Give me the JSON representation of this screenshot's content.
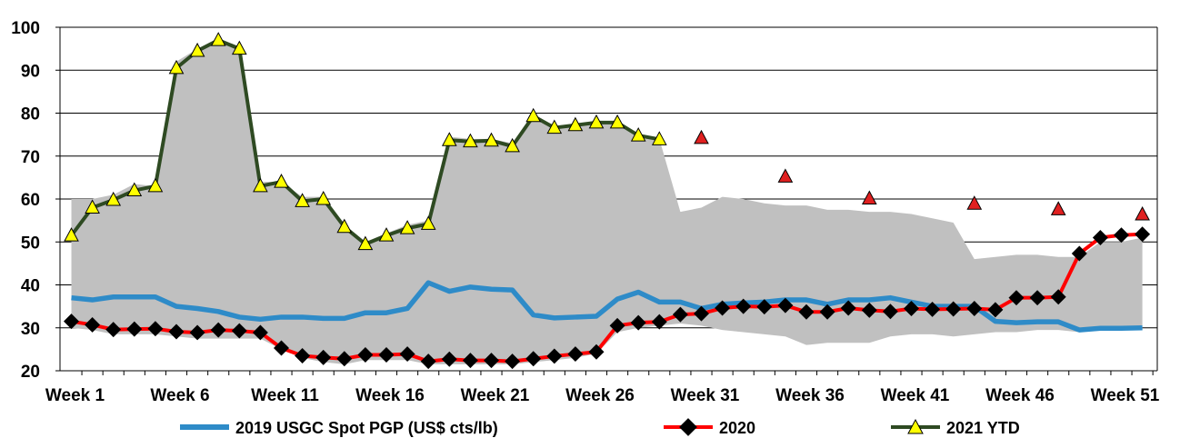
{
  "chart_data": {
    "type": "line",
    "title": "",
    "xlabel": "",
    "ylabel": "",
    "ylim": [
      20,
      100
    ],
    "y_ticks": [
      20,
      30,
      40,
      50,
      60,
      70,
      80,
      90,
      100
    ],
    "x_weeks": [
      1,
      2,
      3,
      4,
      5,
      6,
      7,
      8,
      9,
      10,
      11,
      12,
      13,
      14,
      15,
      16,
      17,
      18,
      19,
      20,
      21,
      22,
      23,
      24,
      25,
      26,
      27,
      28,
      29,
      30,
      31,
      32,
      33,
      34,
      35,
      36,
      37,
      38,
      39,
      40,
      41,
      42,
      43,
      44,
      45,
      46,
      47,
      48,
      49,
      50,
      51,
      52
    ],
    "x_tick_labels": [
      {
        "week": 1,
        "label": "Week 1"
      },
      {
        "week": 6,
        "label": "Week 6"
      },
      {
        "week": 11,
        "label": "Week 11"
      },
      {
        "week": 16,
        "label": "Week 16"
      },
      {
        "week": 21,
        "label": "Week 21"
      },
      {
        "week": 26,
        "label": "Week 26"
      },
      {
        "week": 31,
        "label": "Week 31"
      },
      {
        "week": 36,
        "label": "Week 36"
      },
      {
        "week": 41,
        "label": "Week 41"
      },
      {
        "week": 46,
        "label": "Week 46"
      },
      {
        "week": 51,
        "label": "Week 51"
      }
    ],
    "grid": "horizontal",
    "legend_position": "bottom",
    "colors": {
      "range_band": "#c0c0c0",
      "series_2019": "#2e8bc8",
      "series_2020_line": "#ff0000",
      "series_2020_marker": "#000000",
      "series_2021_line": "#2e4a22",
      "series_2021_marker": "#ffff00",
      "sparse_marker": "#e02020"
    },
    "range_band": {
      "upper": [
        60,
        60,
        61,
        63.5,
        63,
        92,
        95,
        97.5,
        95.5,
        64,
        64,
        60.5,
        60.5,
        54,
        50,
        52,
        54,
        55,
        74.5,
        74,
        74,
        73,
        79.5,
        77,
        77.5,
        78,
        78,
        75,
        74,
        57,
        58,
        60.5,
        60,
        59,
        58.5,
        58.5,
        57.5,
        57.5,
        57,
        57,
        56.5,
        55.5,
        54.5,
        46,
        46.5,
        47,
        47,
        46.5,
        46.5,
        50,
        50,
        51
      ],
      "lower": [
        30,
        29.5,
        28.5,
        28.5,
        28.5,
        28,
        27.5,
        27.5,
        27.5,
        27.5,
        25,
        23,
        22,
        21.5,
        22.5,
        22.5,
        22.5,
        21.5,
        21.5,
        21.5,
        21.5,
        21.5,
        22,
        22.5,
        23,
        24,
        29,
        30,
        30.5,
        31,
        30.5,
        29.5,
        29,
        28.5,
        28,
        26,
        26.5,
        26.5,
        26.5,
        28,
        28.5,
        28.5,
        28,
        28.5,
        29,
        29,
        29.5,
        29.5,
        29,
        29.5,
        29.5,
        29.5
      ]
    },
    "series": [
      {
        "name": "2019 USGC Spot PGP (US$ cts/lb)",
        "values": [
          37,
          36.5,
          37.2,
          37.2,
          37.2,
          35,
          34.5,
          33.8,
          32.5,
          32,
          32.5,
          32.5,
          32.2,
          32.2,
          33.5,
          33.5,
          34.5,
          40.5,
          38.5,
          39.5,
          39,
          38.8,
          33,
          32.3,
          32.5,
          32.7,
          36.7,
          38.3,
          36,
          36,
          34.5,
          35.5,
          35.8,
          36,
          36.5,
          36.5,
          35.5,
          36.5,
          36.5,
          37,
          36,
          35,
          35,
          35,
          31.5,
          31.2,
          31.4,
          31.4,
          29.5,
          29.9,
          29.9,
          30
        ]
      },
      {
        "name": "2020",
        "values": [
          31.5,
          30.7,
          29.6,
          29.7,
          29.8,
          29.1,
          28.9,
          29.5,
          29.3,
          28.9,
          25.3,
          23.5,
          23.1,
          22.8,
          23.7,
          23.7,
          23.9,
          22.2,
          22.7,
          22.4,
          22.4,
          22.2,
          22.8,
          23.4,
          23.9,
          24.4,
          30.5,
          31.2,
          31.4,
          33.1,
          33.3,
          34.6,
          35,
          34.9,
          35.2,
          33.7,
          33.7,
          34.6,
          34.1,
          33.8,
          34.5,
          34.3,
          34.4,
          34.5,
          34.2,
          37,
          37,
          37.2,
          47.3,
          51,
          51.6,
          51.8
        ]
      },
      {
        "name": "2021 YTD",
        "values": [
          51.5,
          58,
          59.8,
          62,
          63,
          90.5,
          94.5,
          97,
          95,
          63,
          64,
          59.5,
          60,
          53.5,
          49.5,
          51.5,
          53.2,
          54.2,
          73.7,
          73.4,
          73.6,
          72.3,
          79.3,
          76.6,
          77.2,
          77.8,
          77.8,
          74.8,
          73.9
        ]
      },
      {
        "name": "",
        "sparse": true,
        "points": [
          {
            "week": 31,
            "value": 74.2
          },
          {
            "week": 35,
            "value": 65.2
          },
          {
            "week": 39,
            "value": 60.1
          },
          {
            "week": 44,
            "value": 58.9
          },
          {
            "week": 48,
            "value": 57.6
          },
          {
            "week": 52,
            "value": 56.4
          }
        ]
      }
    ]
  }
}
